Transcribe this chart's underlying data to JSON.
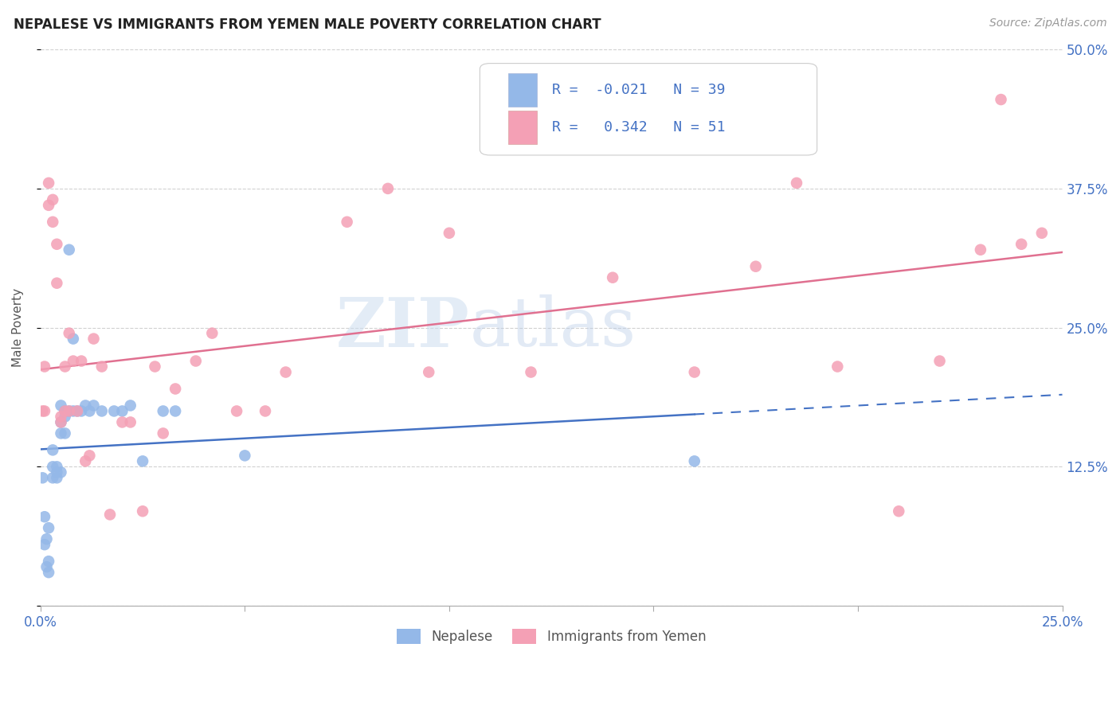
{
  "title": "NEPALESE VS IMMIGRANTS FROM YEMEN MALE POVERTY CORRELATION CHART",
  "source": "Source: ZipAtlas.com",
  "ylabel": "Male Poverty",
  "xlim": [
    0.0,
    0.25
  ],
  "ylim": [
    0.0,
    0.5
  ],
  "xticks": [
    0.0,
    0.05,
    0.1,
    0.15,
    0.2,
    0.25
  ],
  "xtick_labels": [
    "0.0%",
    "",
    "",
    "",
    "",
    "25.0%"
  ],
  "yticks": [
    0.0,
    0.125,
    0.25,
    0.375,
    0.5
  ],
  "ytick_labels": [
    "",
    "12.5%",
    "25.0%",
    "37.5%",
    "50.0%"
  ],
  "nepalese_R": -0.021,
  "nepalese_N": 39,
  "yemen_R": 0.342,
  "yemen_N": 51,
  "nepalese_color": "#94b8e8",
  "yemen_color": "#f4a0b5",
  "nepalese_line_color": "#4472c4",
  "yemen_line_color": "#e07090",
  "watermark_zip": "ZIP",
  "watermark_atlas": "atlas",
  "legend_label_nepalese": "Nepalese",
  "legend_label_yemen": "Immigrants from Yemen",
  "nepalese_x": [
    0.0005,
    0.001,
    0.001,
    0.0015,
    0.0015,
    0.002,
    0.002,
    0.002,
    0.003,
    0.003,
    0.003,
    0.004,
    0.004,
    0.004,
    0.005,
    0.005,
    0.005,
    0.005,
    0.006,
    0.006,
    0.006,
    0.007,
    0.007,
    0.008,
    0.008,
    0.009,
    0.01,
    0.011,
    0.012,
    0.013,
    0.015,
    0.018,
    0.02,
    0.022,
    0.025,
    0.03,
    0.033,
    0.05,
    0.16
  ],
  "nepalese_y": [
    0.115,
    0.08,
    0.055,
    0.035,
    0.06,
    0.07,
    0.04,
    0.03,
    0.115,
    0.125,
    0.14,
    0.115,
    0.12,
    0.125,
    0.12,
    0.155,
    0.165,
    0.18,
    0.155,
    0.17,
    0.175,
    0.175,
    0.32,
    0.175,
    0.24,
    0.175,
    0.175,
    0.18,
    0.175,
    0.18,
    0.175,
    0.175,
    0.175,
    0.18,
    0.13,
    0.175,
    0.175,
    0.135,
    0.13
  ],
  "yemen_x": [
    0.0005,
    0.001,
    0.001,
    0.002,
    0.002,
    0.003,
    0.003,
    0.004,
    0.004,
    0.005,
    0.005,
    0.006,
    0.006,
    0.007,
    0.007,
    0.008,
    0.009,
    0.01,
    0.011,
    0.012,
    0.013,
    0.015,
    0.017,
    0.02,
    0.022,
    0.025,
    0.028,
    0.03,
    0.033,
    0.038,
    0.042,
    0.048,
    0.055,
    0.06,
    0.075,
    0.085,
    0.095,
    0.1,
    0.12,
    0.14,
    0.155,
    0.16,
    0.175,
    0.185,
    0.195,
    0.21,
    0.22,
    0.23,
    0.235,
    0.24,
    0.245
  ],
  "yemen_y": [
    0.175,
    0.175,
    0.215,
    0.36,
    0.38,
    0.345,
    0.365,
    0.29,
    0.325,
    0.165,
    0.17,
    0.175,
    0.215,
    0.175,
    0.245,
    0.22,
    0.175,
    0.22,
    0.13,
    0.135,
    0.24,
    0.215,
    0.082,
    0.165,
    0.165,
    0.085,
    0.215,
    0.155,
    0.195,
    0.22,
    0.245,
    0.175,
    0.175,
    0.21,
    0.345,
    0.375,
    0.21,
    0.335,
    0.21,
    0.295,
    0.455,
    0.21,
    0.305,
    0.38,
    0.215,
    0.085,
    0.22,
    0.32,
    0.455,
    0.325,
    0.335
  ]
}
